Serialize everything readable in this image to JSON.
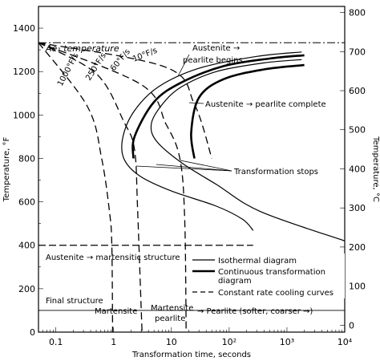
{
  "chart_data": {
    "type": "line",
    "xlabel": "Transformation time, seconds",
    "ylabel_left": "Temperature, °F",
    "ylabel_right": "Temperature, °C",
    "x_scale": "log",
    "xlim": [
      0.05,
      10000
    ],
    "ylim_left": [
      0,
      1500
    ],
    "ylim_right_ticks": [
      0,
      100,
      200,
      300,
      400,
      500,
      600,
      700,
      800
    ],
    "x_ticks": [
      "0.1",
      "1",
      "10",
      "10²",
      "10³",
      "10⁴"
    ],
    "x_tick_values": [
      0.1,
      1,
      10,
      100,
      1000,
      10000
    ],
    "y_ticks_left": [
      0,
      200,
      400,
      600,
      800,
      1000,
      1200,
      1400
    ],
    "ae1_temperature_F": 1333,
    "ms_temperature_F": 400,
    "final_structure_line_F": 100,
    "annotations": {
      "ae1": "Ae₁ temperature",
      "austenite_begins_1": "Austenite →",
      "austenite_begins_2": "pearlite begins",
      "austenite_complete": "Austenite → pearlite complete",
      "transformation_stops": "Transformation stops",
      "austenite_martensitic": "Austenite → martensitic structure",
      "final_structure": "Final structure",
      "martensite": "Martensite",
      "martensite_pearlite_1": "Martensite",
      "martensite_pearlite_2": "pearlite",
      "pearlite": "→ Pearlite (softer, coarser →)",
      "rate_10": "10°F/s",
      "rate_60": "60°F/s",
      "rate_250": "250°F/s",
      "rate_1000": "1000°F/s"
    },
    "legend": [
      {
        "label": "Isothermal diagram",
        "style": "thin"
      },
      {
        "label": "Continuous transformation diagram",
        "style": "thick"
      },
      {
        "label": "Constant rate cooling curves",
        "style": "dashed"
      }
    ],
    "series": [
      {
        "name": "Isothermal diagram",
        "style": "thin",
        "curves": [
          [
            [
              1800,
              1290
            ],
            [
              300,
              1270
            ],
            [
              30,
              1215
            ],
            [
              6,
              1130
            ],
            [
              2.3,
              1020
            ],
            [
              1.45,
              900
            ],
            [
              1.5,
              800
            ],
            [
              2.8,
              720
            ],
            [
              10,
              650
            ],
            [
              60,
              580
            ],
            [
              170,
              520
            ],
            [
              260,
              468
            ]
          ],
          [
            [
              1800,
              1255
            ],
            [
              400,
              1240
            ],
            [
              60,
              1200
            ],
            [
              15,
              1130
            ],
            [
              7,
              1050
            ],
            [
              4.5,
              960
            ],
            [
              5.5,
              880
            ],
            [
              15,
              780
            ],
            [
              60,
              680
            ],
            [
              350,
              555
            ],
            [
              10000,
              420
            ]
          ]
        ]
      },
      {
        "name": "Continuous transformation diagram",
        "style": "thick",
        "curves": [
          [
            [
              2000,
              1275
            ],
            [
              500,
              1260
            ],
            [
              80,
              1225
            ],
            [
              15,
              1150
            ],
            [
              5,
              1060
            ],
            [
              2.3,
              900
            ],
            [
              2.2,
              800
            ]
          ],
          [
            [
              2000,
              1230
            ],
            [
              400,
              1210
            ],
            [
              80,
              1165
            ],
            [
              30,
              1080
            ],
            [
              22,
              920
            ],
            [
              25,
              800
            ]
          ]
        ]
      },
      {
        "name": "Cooling 1000°F/s",
        "style": "dashed",
        "curves": [
          [
            [
              0.05,
              1333
            ],
            [
              0.35,
              1040
            ],
            [
              0.62,
              800
            ],
            [
              0.85,
              550
            ],
            [
              0.93,
              400
            ],
            [
              0.96,
              0
            ]
          ]
        ]
      },
      {
        "name": "Cooling 250°F/s",
        "style": "dashed",
        "curves": [
          [
            [
              0.05,
              1333
            ],
            [
              0.5,
              1190
            ],
            [
              1.5,
              970
            ],
            [
              2.3,
              840
            ],
            [
              2.6,
              560
            ],
            [
              3.1,
              0
            ]
          ]
        ]
      },
      {
        "name": "Cooling 60°F/s",
        "style": "dashed",
        "curves": [
          [
            [
              0.05,
              1333
            ],
            [
              3,
              1140
            ],
            [
              8,
              960
            ],
            [
              14,
              800
            ],
            [
              17,
              520
            ],
            [
              18,
              0
            ]
          ]
        ]
      },
      {
        "name": "Cooling 10°F/s",
        "style": "dashed",
        "curves": [
          [
            [
              0.05,
              1333
            ],
            [
              8,
              1220
            ],
            [
              25,
              1050
            ],
            [
              50,
              800
            ]
          ]
        ]
      }
    ]
  }
}
